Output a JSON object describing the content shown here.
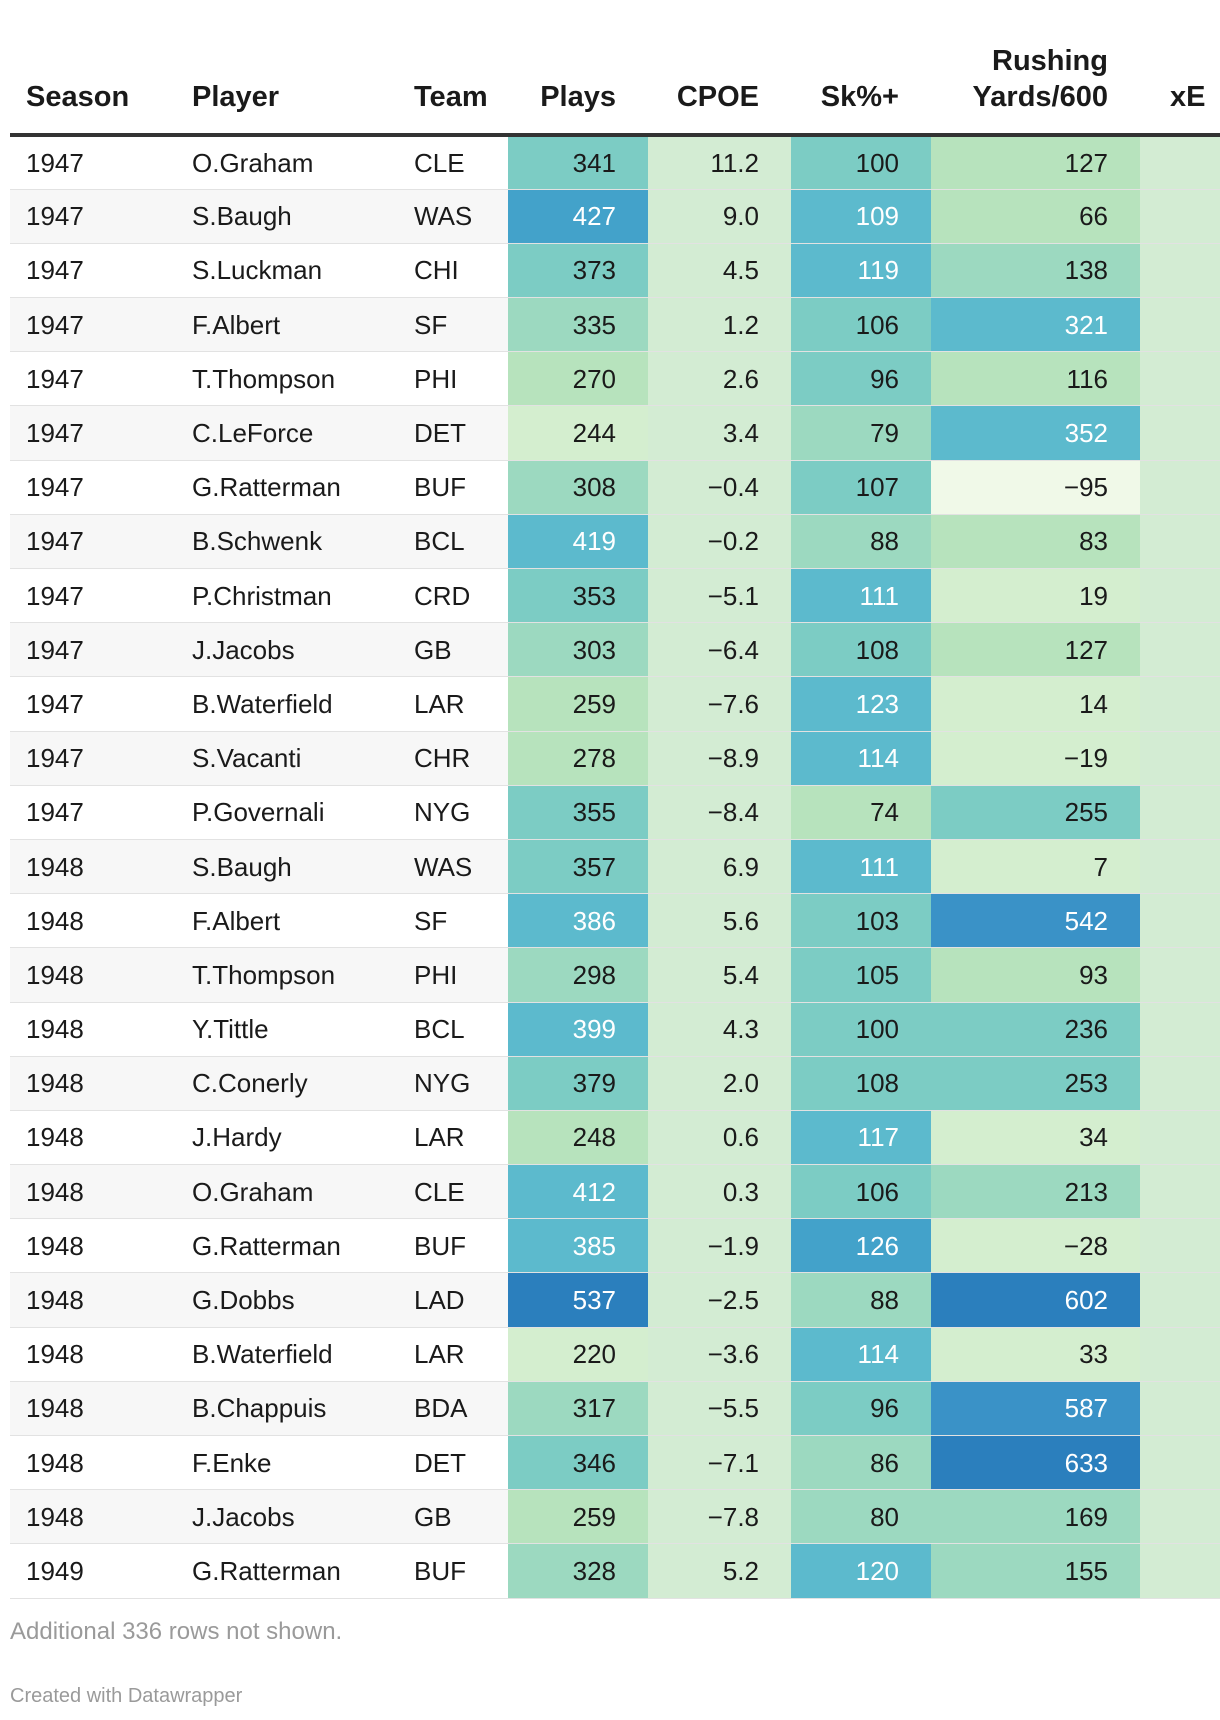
{
  "chart_data": {
    "type": "table",
    "columns": {
      "season": "Season",
      "player": "Player",
      "team": "Team",
      "plays": "Plays",
      "cpoe": "CPOE",
      "sk": "Sk%+",
      "rush_line1": "Rushing",
      "rush_line2": "Yards/600",
      "xe": "xE"
    },
    "rows": [
      {
        "season": "1947",
        "player": "O.Graham",
        "team": "CLE",
        "plays": "341",
        "cpoe": "11.2",
        "sk": "100",
        "rush": "127"
      },
      {
        "season": "1947",
        "player": "S.Baugh",
        "team": "WAS",
        "plays": "427",
        "cpoe": "9.0",
        "sk": "109",
        "rush": "66"
      },
      {
        "season": "1947",
        "player": "S.Luckman",
        "team": "CHI",
        "plays": "373",
        "cpoe": "4.5",
        "sk": "119",
        "rush": "138"
      },
      {
        "season": "1947",
        "player": "F.Albert",
        "team": "SF",
        "plays": "335",
        "cpoe": "1.2",
        "sk": "106",
        "rush": "321"
      },
      {
        "season": "1947",
        "player": "T.Thompson",
        "team": "PHI",
        "plays": "270",
        "cpoe": "2.6",
        "sk": "96",
        "rush": "116"
      },
      {
        "season": "1947",
        "player": "C.LeForce",
        "team": "DET",
        "plays": "244",
        "cpoe": "3.4",
        "sk": "79",
        "rush": "352"
      },
      {
        "season": "1947",
        "player": "G.Ratterman",
        "team": "BUF",
        "plays": "308",
        "cpoe": "−0.4",
        "sk": "107",
        "rush": "−95"
      },
      {
        "season": "1947",
        "player": "B.Schwenk",
        "team": "BCL",
        "plays": "419",
        "cpoe": "−0.2",
        "sk": "88",
        "rush": "83"
      },
      {
        "season": "1947",
        "player": "P.Christman",
        "team": "CRD",
        "plays": "353",
        "cpoe": "−5.1",
        "sk": "111",
        "rush": "19"
      },
      {
        "season": "1947",
        "player": "J.Jacobs",
        "team": "GB",
        "plays": "303",
        "cpoe": "−6.4",
        "sk": "108",
        "rush": "127"
      },
      {
        "season": "1947",
        "player": "B.Waterfield",
        "team": "LAR",
        "plays": "259",
        "cpoe": "−7.6",
        "sk": "123",
        "rush": "14"
      },
      {
        "season": "1947",
        "player": "S.Vacanti",
        "team": "CHR",
        "plays": "278",
        "cpoe": "−8.9",
        "sk": "114",
        "rush": "−19"
      },
      {
        "season": "1947",
        "player": "P.Governali",
        "team": "NYG",
        "plays": "355",
        "cpoe": "−8.4",
        "sk": "74",
        "rush": "255"
      },
      {
        "season": "1948",
        "player": "S.Baugh",
        "team": "WAS",
        "plays": "357",
        "cpoe": "6.9",
        "sk": "111",
        "rush": "7"
      },
      {
        "season": "1948",
        "player": "F.Albert",
        "team": "SF",
        "plays": "386",
        "cpoe": "5.6",
        "sk": "103",
        "rush": "542"
      },
      {
        "season": "1948",
        "player": "T.Thompson",
        "team": "PHI",
        "plays": "298",
        "cpoe": "5.4",
        "sk": "105",
        "rush": "93"
      },
      {
        "season": "1948",
        "player": "Y.Tittle",
        "team": "BCL",
        "plays": "399",
        "cpoe": "4.3",
        "sk": "100",
        "rush": "236"
      },
      {
        "season": "1948",
        "player": "C.Conerly",
        "team": "NYG",
        "plays": "379",
        "cpoe": "2.0",
        "sk": "108",
        "rush": "253"
      },
      {
        "season": "1948",
        "player": "J.Hardy",
        "team": "LAR",
        "plays": "248",
        "cpoe": "0.6",
        "sk": "117",
        "rush": "34"
      },
      {
        "season": "1948",
        "player": "O.Graham",
        "team": "CLE",
        "plays": "412",
        "cpoe": "0.3",
        "sk": "106",
        "rush": "213"
      },
      {
        "season": "1948",
        "player": "G.Ratterman",
        "team": "BUF",
        "plays": "385",
        "cpoe": "−1.9",
        "sk": "126",
        "rush": "−28"
      },
      {
        "season": "1948",
        "player": "G.Dobbs",
        "team": "LAD",
        "plays": "537",
        "cpoe": "−2.5",
        "sk": "88",
        "rush": "602"
      },
      {
        "season": "1948",
        "player": "B.Waterfield",
        "team": "LAR",
        "plays": "220",
        "cpoe": "−3.6",
        "sk": "114",
        "rush": "33"
      },
      {
        "season": "1948",
        "player": "B.Chappuis",
        "team": "BDA",
        "plays": "317",
        "cpoe": "−5.5",
        "sk": "96",
        "rush": "587"
      },
      {
        "season": "1948",
        "player": "F.Enke",
        "team": "DET",
        "plays": "346",
        "cpoe": "−7.1",
        "sk": "86",
        "rush": "633"
      },
      {
        "season": "1948",
        "player": "J.Jacobs",
        "team": "GB",
        "plays": "259",
        "cpoe": "−7.8",
        "sk": "80",
        "rush": "169"
      },
      {
        "season": "1949",
        "player": "G.Ratterman",
        "team": "BUF",
        "plays": "328",
        "cpoe": "5.2",
        "sk": "120",
        "rush": "155"
      }
    ]
  },
  "footer_note": "Additional 336 rows not shown.",
  "credit": "Created with Datawrapper",
  "colors": {
    "scale": [
      "#f0f9e8",
      "#d4eecf",
      "#b7e3bd",
      "#9cd9c0",
      "#7cccc4",
      "#5cbacd",
      "#43a2ca",
      "#3a92c7",
      "#2b7fbd"
    ],
    "cpoe_bg": "#d3ecd3",
    "xe_bg": "#d3ecd3"
  }
}
